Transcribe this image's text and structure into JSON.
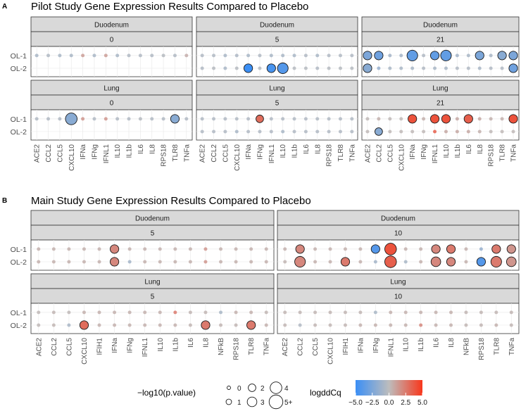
{
  "panel_a": {
    "letter": "A",
    "title": "Pilot Study Gene Expression Results Compared to Placebo",
    "facets": [
      {
        "tissue": "Duodenum",
        "day": "0"
      },
      {
        "tissue": "Duodenum",
        "day": "5"
      },
      {
        "tissue": "Duodenum",
        "day": "21"
      },
      {
        "tissue": "Lung",
        "day": "0"
      },
      {
        "tissue": "Lung",
        "day": "5"
      },
      {
        "tissue": "Lung",
        "day": "21"
      }
    ]
  },
  "panel_b": {
    "letter": "B",
    "title": "Main Study Gene Expression Results Compared to Placebo",
    "facets": [
      {
        "tissue": "Duodenum",
        "day": "5"
      },
      {
        "tissue": "Duodenum",
        "day": "10"
      },
      {
        "tissue": "Lung",
        "day": "5"
      },
      {
        "tissue": "Lung",
        "day": "10"
      }
    ]
  },
  "legend": {
    "size_title": "−log10(p.value)",
    "size_labels": [
      "0",
      "1",
      "2",
      "3",
      "4",
      "5+"
    ],
    "size_values": [
      0,
      1,
      2,
      3,
      4,
      5
    ],
    "color_title": "logddCq",
    "color_ticks": [
      "−5.0",
      "−2.5",
      "0.0",
      "2.5",
      "5.0"
    ],
    "color_low": "#3b8ff5",
    "color_mid": "#bdbdbd",
    "color_high": "#f8371c"
  },
  "chart_data": [
    {
      "type": "scatter",
      "title": "Pilot Study Gene Expression Results Compared to Placebo",
      "genes": [
        "ACE2",
        "CCL2",
        "CCL5",
        "CXCL10",
        "IFNa",
        "IFNg",
        "IFNL1",
        "IL10",
        "IL1b",
        "IL6",
        "IL8",
        "RPS18",
        "TLR8",
        "TNFa"
      ],
      "rows": [
        "OL-1",
        "OL-2"
      ],
      "size_variable": "-log10(p.value)",
      "color_variable": "logddCq",
      "facets": [
        {
          "tissue": "Duodenum",
          "day": "0",
          "color": [
            [
              -0.8,
              -0.5,
              -0.8,
              -0.8,
              1.2,
              -0.8,
              1.2,
              -0.8,
              -0.5,
              -0.5,
              -0.5,
              -0.3,
              -0.5,
              0.6
            ],
            null
          ],
          "size": [
            [
              0,
              0,
              0,
              0,
              0,
              0,
              0,
              0,
              0,
              0,
              0,
              0,
              0,
              0
            ],
            null
          ]
        },
        {
          "tissue": "Duodenum",
          "day": "5",
          "color": [
            [
              -0.5,
              -0.5,
              -0.8,
              -0.6,
              -0.8,
              -0.5,
              -0.8,
              -0.8,
              -0.8,
              -0.5,
              -0.8,
              -0.5,
              -0.5,
              -0.5
            ],
            [
              -0.5,
              -0.3,
              -0.8,
              -0.3,
              -5.0,
              -0.3,
              -4.5,
              -4.0,
              -0.3,
              -0.3,
              -0.5,
              -0.3,
              -0.3,
              -0.3
            ]
          ],
          "size": [
            [
              0,
              0,
              0,
              0,
              0,
              0,
              0,
              0,
              0,
              0,
              0,
              0,
              0,
              0
            ],
            [
              0,
              0,
              0,
              0,
              2.5,
              0,
              2.5,
              3.5,
              0,
              0,
              0,
              0,
              0,
              0
            ]
          ]
        },
        {
          "tissue": "Duodenum",
          "day": "21",
          "color": [
            [
              -2.5,
              -3.0,
              -1.0,
              -1.0,
              -3.5,
              -0.5,
              -3.5,
              -3.5,
              -1.0,
              -0.8,
              -2.5,
              -0.8,
              -2.0,
              -2.5
            ],
            [
              -2.0,
              -1.5,
              -0.8,
              -0.8,
              -0.8,
              -0.5,
              -0.8,
              -0.8,
              -0.5,
              -0.5,
              -0.8,
              -0.5,
              -0.5,
              -3.0
            ]
          ],
          "size": [
            [
              2.5,
              2.5,
              0,
              0,
              3.5,
              0,
              2.5,
              3.5,
              0,
              0,
              2.5,
              0,
              2.5,
              2.5
            ],
            [
              2.5,
              0,
              0,
              0,
              0,
              0,
              0,
              0,
              0,
              0,
              0,
              0,
              0,
              2.5
            ]
          ]
        },
        {
          "tissue": "Lung",
          "day": "0",
          "color": [
            [
              -0.5,
              -0.5,
              -0.5,
              -2.0,
              1.5,
              -0.5,
              1.5,
              -0.5,
              -0.5,
              -0.3,
              -0.5,
              -0.5,
              -2.0,
              -0.5
            ],
            null
          ],
          "size": [
            [
              0,
              0,
              0,
              4,
              0,
              0,
              0,
              0,
              0,
              0,
              0,
              0,
              2.5,
              0
            ],
            null
          ]
        },
        {
          "tissue": "Lung",
          "day": "5",
          "color": [
            [
              -0.5,
              -0.5,
              -0.5,
              -0.5,
              -0.5,
              3.0,
              -0.5,
              -0.5,
              -0.5,
              -0.5,
              -0.5,
              -0.5,
              -0.5,
              -0.5
            ],
            [
              -0.5,
              -0.5,
              -0.5,
              -0.8,
              -0.5,
              -0.5,
              -0.5,
              -0.8,
              -0.5,
              -0.5,
              -0.5,
              -0.5,
              -0.5,
              -0.5
            ]
          ],
          "size": [
            [
              0,
              0,
              0,
              0,
              0,
              2,
              0,
              0,
              0,
              0,
              0,
              0,
              0,
              0
            ],
            [
              0,
              0,
              0,
              0,
              0,
              0,
              0,
              0,
              0,
              0,
              0,
              0,
              0,
              0
            ]
          ]
        },
        {
          "tissue": "Lung",
          "day": "21",
          "color": [
            [
              0.2,
              0.5,
              0.2,
              0.2,
              4.0,
              0.5,
              4.0,
              4.0,
              0.8,
              3.5,
              0.8,
              0.5,
              0.5,
              4.0
            ],
            [
              0.2,
              -2.0,
              0.2,
              0.2,
              0.2,
              0.2,
              3.5,
              0.8,
              0.8,
              0.8,
              0.5,
              0.2,
              0.2,
              0.2
            ]
          ],
          "size": [
            [
              0,
              0,
              0,
              0,
              2.5,
              0,
              2.5,
              2.5,
              0,
              2.5,
              0,
              0,
              0,
              2.5
            ],
            [
              0,
              2,
              0,
              0,
              0,
              0,
              0,
              0,
              0,
              0,
              0,
              0,
              0,
              0
            ]
          ]
        }
      ]
    },
    {
      "type": "scatter",
      "title": "Main Study Gene Expression Results Compared to Placebo",
      "genes": [
        "ACE2",
        "CCL2",
        "CCL5",
        "CXCL10",
        "IFIH1",
        "IFNa",
        "IFNg",
        "IFNL1",
        "IL10",
        "IL1b",
        "IL6",
        "IL8",
        "NFkB",
        "RPS18",
        "TLR8",
        "TNFa"
      ],
      "rows": [
        "OL-1",
        "OL-2"
      ],
      "size_variable": "-log10(p.value)",
      "color_variable": "logddCq",
      "facets": [
        {
          "tissue": "Duodenum",
          "day": "5",
          "color": [
            [
              0.5,
              0.5,
              0.5,
              0.5,
              0.5,
              2.0,
              0.5,
              0.5,
              0.5,
              0.5,
              0.5,
              1.5,
              0.5,
              0.5,
              0.5,
              0.5
            ],
            [
              0.5,
              0.5,
              0.5,
              0.5,
              0.5,
              2.0,
              -1.0,
              0.5,
              0.5,
              0.5,
              0.5,
              1.5,
              0.5,
              0.5,
              0.5,
              0.5
            ]
          ],
          "size": [
            [
              0,
              0,
              0,
              0,
              0,
              2.5,
              0,
              0,
              0,
              0,
              0,
              0,
              0,
              0,
              0,
              0
            ],
            [
              0,
              0,
              0,
              0,
              0,
              2.5,
              0,
              0,
              0,
              0,
              0,
              0,
              0,
              0,
              0,
              0
            ]
          ]
        },
        {
          "tissue": "Duodenum",
          "day": "10",
          "color": [
            [
              0.5,
              2.0,
              0.5,
              0.5,
              0.5,
              0.5,
              -4.0,
              4.0,
              0.5,
              0.5,
              2.0,
              2.5,
              0.5,
              -1.5,
              2.5,
              1.5
            ],
            [
              0.3,
              2.0,
              0.5,
              0.5,
              2.5,
              0.5,
              -1.0,
              3.5,
              -0.8,
              0.5,
              2.0,
              2.0,
              0.5,
              -4.0,
              2.5,
              1.5
            ]
          ],
          "size": [
            [
              0,
              2.5,
              0,
              0,
              0,
              0,
              2.5,
              4,
              0,
              0,
              2.5,
              2.5,
              0,
              0,
              2.5,
              2.5
            ],
            [
              0,
              3.5,
              0,
              0,
              2.5,
              0,
              0,
              4,
              0,
              0,
              3,
              2.5,
              0,
              2.5,
              3.5,
              3
            ]
          ]
        },
        {
          "tissue": "Lung",
          "day": "5",
          "color": [
            [
              0.2,
              0.3,
              0.2,
              0.5,
              0.5,
              0.5,
              0.5,
              0.5,
              0.5,
              2.5,
              0.3,
              0.3,
              -0.8,
              0.5,
              0.5,
              0.3
            ],
            [
              0.2,
              0.3,
              -0.8,
              3.0,
              0.5,
              0.5,
              0.5,
              0.5,
              0.5,
              0.5,
              0.3,
              2.5,
              0.3,
              0.3,
              2.5,
              0.5
            ]
          ],
          "size": [
            [
              0,
              0,
              0,
              0,
              0,
              0,
              0,
              0,
              0,
              0,
              0,
              0,
              0,
              0,
              0,
              0
            ],
            [
              0,
              0,
              0,
              2.5,
              0,
              0,
              0,
              0,
              0,
              0,
              0,
              2.5,
              0,
              0,
              2.5,
              0
            ]
          ]
        },
        {
          "tissue": "Lung",
          "day": "10",
          "color": [
            [
              0.3,
              0.3,
              0.3,
              0.3,
              0.3,
              0.3,
              -0.8,
              0.5,
              0.5,
              0.5,
              0.5,
              0.5,
              0.3,
              0.3,
              0.3,
              0.3
            ],
            [
              0.3,
              -0.5,
              0.3,
              0.3,
              0.3,
              0.5,
              0.5,
              0.5,
              0.5,
              2.0,
              0.5,
              0.5,
              0.3,
              0.3,
              0.5,
              0.3
            ]
          ],
          "size": [
            [
              0,
              0,
              0,
              0,
              0,
              0,
              0,
              0,
              0,
              0,
              0,
              0,
              0,
              0,
              0,
              0
            ],
            [
              0,
              0,
              0,
              0,
              0,
              0,
              0,
              0,
              0,
              0,
              0,
              0,
              0,
              0,
              0,
              0
            ]
          ]
        }
      ]
    }
  ]
}
